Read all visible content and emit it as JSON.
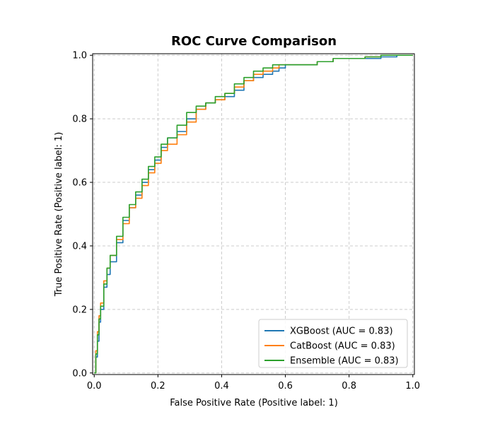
{
  "chart_data": {
    "type": "line",
    "title": "ROC Curve Comparison",
    "xlabel": "False Positive Rate (Positive label: 1)",
    "ylabel": "True Positive Rate (Positive label: 1)",
    "xlim": [
      0,
      1
    ],
    "ylim": [
      0,
      1
    ],
    "xticks": [
      "0.0",
      "0.2",
      "0.4",
      "0.6",
      "0.8",
      "1.0"
    ],
    "yticks": [
      "0.0",
      "0.2",
      "0.4",
      "0.6",
      "0.8",
      "1.0"
    ],
    "grid": true,
    "legend_position": "lower-right",
    "series": [
      {
        "name": "XGBoost (AUC = 0.83)",
        "color": "#1f77b4",
        "x": [
          0.0,
          0.005,
          0.01,
          0.015,
          0.02,
          0.03,
          0.04,
          0.05,
          0.07,
          0.09,
          0.11,
          0.13,
          0.15,
          0.17,
          0.19,
          0.21,
          0.23,
          0.26,
          0.29,
          0.32,
          0.35,
          0.38,
          0.41,
          0.44,
          0.47,
          0.5,
          0.53,
          0.56,
          0.58,
          0.6,
          0.65,
          0.7,
          0.75,
          0.8,
          0.85,
          0.9,
          0.95,
          1.0
        ],
        "y": [
          0.0,
          0.05,
          0.1,
          0.16,
          0.2,
          0.27,
          0.31,
          0.35,
          0.41,
          0.48,
          0.52,
          0.56,
          0.6,
          0.64,
          0.67,
          0.71,
          0.74,
          0.76,
          0.8,
          0.83,
          0.85,
          0.86,
          0.87,
          0.89,
          0.92,
          0.93,
          0.94,
          0.95,
          0.96,
          0.97,
          0.97,
          0.98,
          0.99,
          0.99,
          0.99,
          0.995,
          1.0,
          1.0
        ]
      },
      {
        "name": "CatBoost (AUC = 0.83)",
        "color": "#ff7f0e",
        "x": [
          0.0,
          0.005,
          0.01,
          0.015,
          0.02,
          0.03,
          0.04,
          0.05,
          0.07,
          0.09,
          0.11,
          0.13,
          0.15,
          0.17,
          0.19,
          0.21,
          0.23,
          0.26,
          0.29,
          0.32,
          0.35,
          0.38,
          0.41,
          0.44,
          0.47,
          0.5,
          0.53,
          0.56,
          0.58,
          0.6,
          0.65,
          0.7,
          0.75,
          0.8,
          0.85,
          0.9,
          0.95,
          1.0
        ],
        "y": [
          0.0,
          0.07,
          0.13,
          0.18,
          0.22,
          0.29,
          0.33,
          0.37,
          0.42,
          0.47,
          0.52,
          0.55,
          0.59,
          0.63,
          0.66,
          0.7,
          0.72,
          0.75,
          0.79,
          0.83,
          0.85,
          0.86,
          0.88,
          0.9,
          0.92,
          0.94,
          0.95,
          0.96,
          0.97,
          0.97,
          0.97,
          0.98,
          0.99,
          0.99,
          0.995,
          1.0,
          1.0,
          1.0
        ]
      },
      {
        "name": "Ensemble (AUC = 0.83)",
        "color": "#2ca02c",
        "x": [
          0.0,
          0.005,
          0.01,
          0.015,
          0.02,
          0.03,
          0.04,
          0.05,
          0.07,
          0.09,
          0.11,
          0.13,
          0.15,
          0.17,
          0.19,
          0.21,
          0.23,
          0.26,
          0.29,
          0.32,
          0.35,
          0.38,
          0.41,
          0.44,
          0.47,
          0.5,
          0.53,
          0.56,
          0.58,
          0.6,
          0.65,
          0.7,
          0.75,
          0.8,
          0.85,
          0.9,
          0.95,
          1.0
        ],
        "y": [
          0.0,
          0.06,
          0.12,
          0.17,
          0.21,
          0.28,
          0.33,
          0.37,
          0.43,
          0.49,
          0.53,
          0.57,
          0.61,
          0.65,
          0.68,
          0.72,
          0.74,
          0.78,
          0.82,
          0.84,
          0.85,
          0.87,
          0.88,
          0.91,
          0.93,
          0.95,
          0.96,
          0.97,
          0.97,
          0.97,
          0.97,
          0.98,
          0.99,
          0.99,
          0.995,
          1.0,
          1.0,
          1.0
        ]
      }
    ]
  }
}
